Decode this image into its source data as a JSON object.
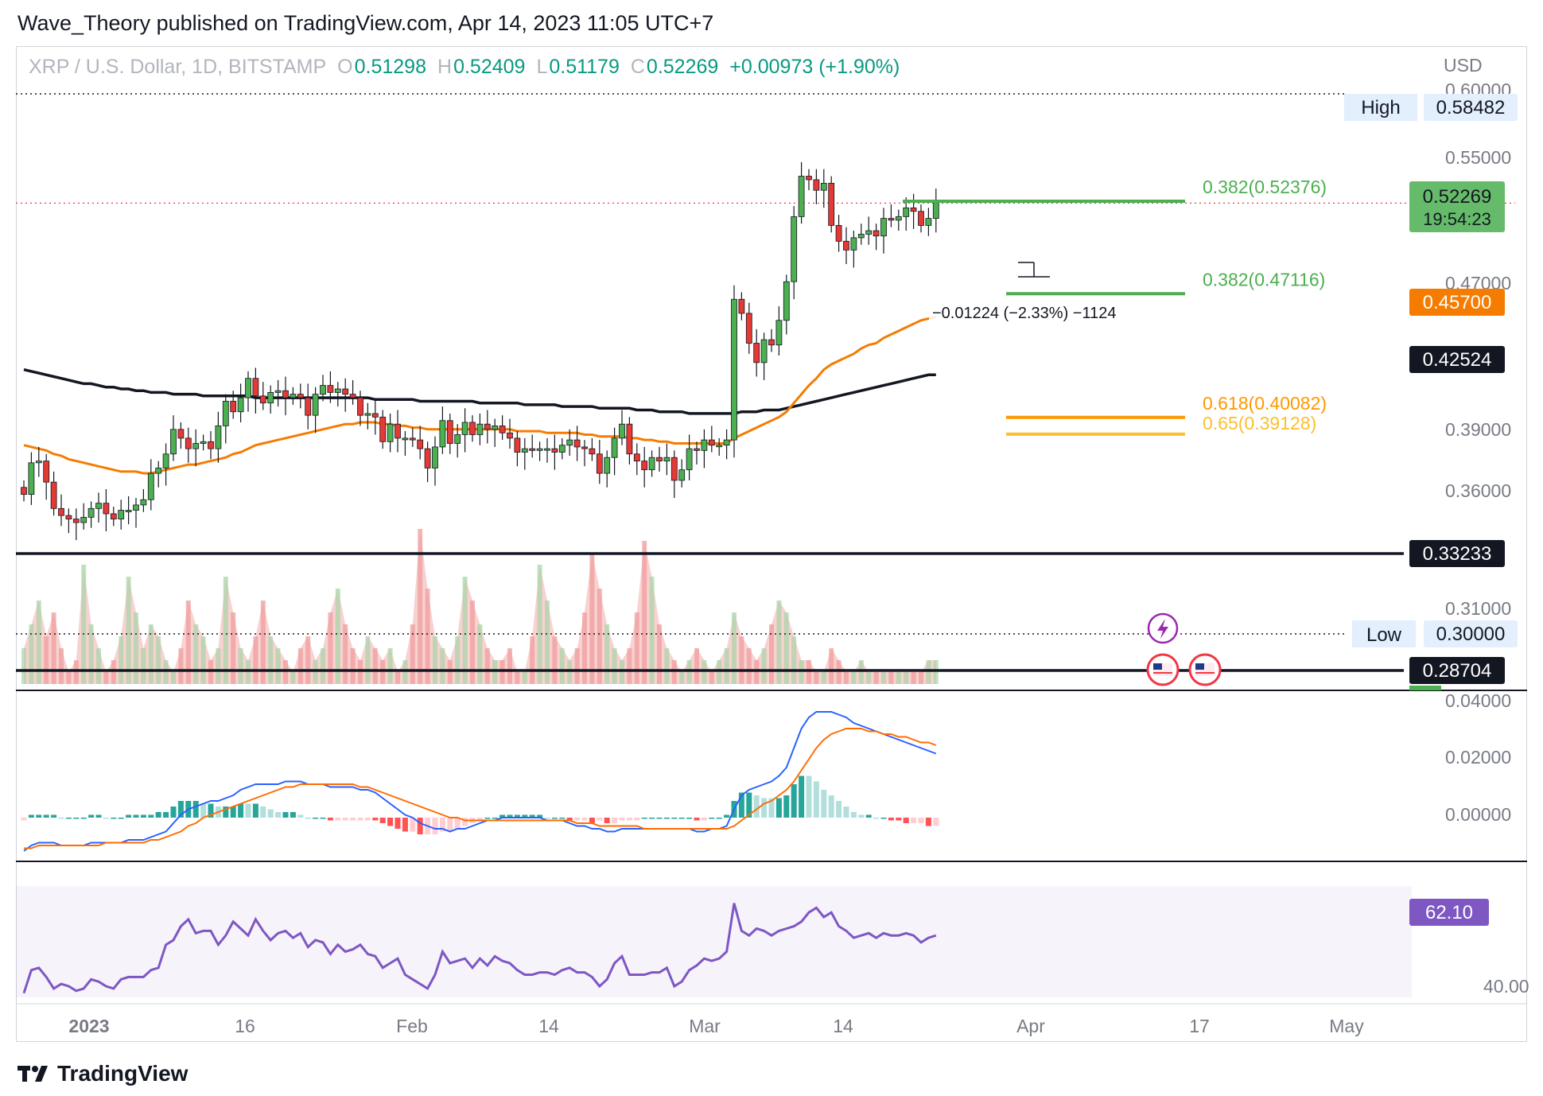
{
  "header": {
    "text": "Wave_Theory published on TradingView.com, Apr 14, 2023 11:05 UTC+7"
  },
  "legend": {
    "symbol": "XRP / U.S. Dollar, 1D, BITSTAMP",
    "o_label": "O",
    "o_value": "0.51298",
    "h_label": "H",
    "h_value": "0.52409",
    "l_label": "L",
    "l_value": "0.51179",
    "c_label": "C",
    "c_value": "0.52269",
    "change": "+0.00973 (+1.90%)"
  },
  "footer": {
    "brand": "TradingView"
  },
  "colors": {
    "up": "#089981",
    "down": "#f23645",
    "ema50": "#f57c00",
    "ema200": "#131722",
    "macd": "#2962ff",
    "signal": "#ff6d00",
    "rsi": "#7e57c2",
    "fib_green": "#4caf50",
    "fib_orange": "#ff9800",
    "fib_yellow": "#ffeb3b"
  },
  "chart_data": [
    {
      "type": "candlestick",
      "title": "XRP / U.S. Dollar, 1D, BITSTAMP",
      "currency": "USD",
      "x_ticks": [
        "2023",
        "16",
        "Feb",
        "14",
        "Mar",
        "14",
        "Apr",
        "17",
        "May"
      ],
      "ylim": [
        0.285,
        0.6
      ],
      "y_ticks": [
        "0.60000",
        "0.55000",
        "0.47000",
        "0.39000",
        "0.36000",
        "0.31000"
      ],
      "price_labels": [
        {
          "name": "High",
          "value": "0.58482"
        },
        {
          "name": "last",
          "value": "0.52269",
          "countdown": "19:54:23"
        },
        {
          "name": "ema50",
          "value": "0.45700"
        },
        {
          "name": "ema200",
          "value": "0.42524"
        },
        {
          "name": "support",
          "value": "0.33233"
        },
        {
          "name": "Low",
          "value": "0.30000"
        },
        {
          "name": "support2",
          "value": "0.28704"
        }
      ],
      "fib_levels": [
        {
          "label": "0.382(0.52376)",
          "value": 0.52376,
          "color": "#4caf50"
        },
        {
          "label": "0.382(0.47116)",
          "value": 0.47116,
          "color": "#4caf50"
        },
        {
          "label": "0.618(0.40082)",
          "value": 0.40082,
          "color": "#ff9800"
        },
        {
          "label": "0.65(0.39128)",
          "value": 0.39128,
          "color": "#fbc02d"
        }
      ],
      "horizontal_lines": [
        0.33233,
        0.28704
      ],
      "measure_annotation": "−0.01224 (−2.33%) −1124",
      "closes": [
        0.357,
        0.375,
        0.376,
        0.364,
        0.349,
        0.345,
        0.343,
        0.341,
        0.344,
        0.349,
        0.352,
        0.346,
        0.343,
        0.348,
        0.348,
        0.351,
        0.354,
        0.369,
        0.372,
        0.38,
        0.394,
        0.389,
        0.383,
        0.386,
        0.387,
        0.383,
        0.396,
        0.41,
        0.404,
        0.412,
        0.423,
        0.413,
        0.409,
        0.415,
        0.416,
        0.412,
        0.414,
        0.412,
        0.402,
        0.414,
        0.419,
        0.415,
        0.417,
        0.414,
        0.412,
        0.402,
        0.403,
        0.401,
        0.387,
        0.397,
        0.389,
        0.389,
        0.388,
        0.383,
        0.372,
        0.384,
        0.399,
        0.386,
        0.391,
        0.398,
        0.391,
        0.397,
        0.394,
        0.396,
        0.392,
        0.389,
        0.381,
        0.383,
        0.382,
        0.383,
        0.383,
        0.381,
        0.385,
        0.388,
        0.384,
        0.383,
        0.38,
        0.369,
        0.378,
        0.389,
        0.397,
        0.38,
        0.376,
        0.371,
        0.378,
        0.376,
        0.378,
        0.365,
        0.371,
        0.383,
        0.382,
        0.388,
        0.385,
        0.385,
        0.388,
        0.468,
        0.46,
        0.443,
        0.432,
        0.445,
        0.442,
        0.456,
        0.478,
        0.515,
        0.538,
        0.536,
        0.53,
        0.534,
        0.51,
        0.501,
        0.496,
        0.503,
        0.505,
        0.507,
        0.504,
        0.514,
        0.513,
        0.515,
        0.52,
        0.518,
        0.51,
        0.514,
        0.523
      ],
      "ema50": [
        0.385,
        0.384,
        0.383,
        0.382,
        0.38,
        0.379,
        0.377,
        0.376,
        0.375,
        0.374,
        0.373,
        0.372,
        0.371,
        0.37,
        0.37,
        0.37,
        0.369,
        0.369,
        0.37,
        0.371,
        0.372,
        0.373,
        0.374,
        0.374,
        0.375,
        0.376,
        0.377,
        0.378,
        0.38,
        0.381,
        0.383,
        0.385,
        0.386,
        0.387,
        0.388,
        0.389,
        0.39,
        0.391,
        0.392,
        0.393,
        0.394,
        0.395,
        0.396,
        0.397,
        0.397,
        0.398,
        0.398,
        0.398,
        0.397,
        0.397,
        0.396,
        0.396,
        0.395,
        0.395,
        0.394,
        0.394,
        0.394,
        0.394,
        0.394,
        0.394,
        0.394,
        0.394,
        0.394,
        0.394,
        0.394,
        0.394,
        0.393,
        0.393,
        0.393,
        0.393,
        0.392,
        0.392,
        0.392,
        0.392,
        0.392,
        0.391,
        0.391,
        0.39,
        0.39,
        0.39,
        0.39,
        0.389,
        0.389,
        0.388,
        0.388,
        0.387,
        0.387,
        0.386,
        0.386,
        0.386,
        0.386,
        0.386,
        0.386,
        0.386,
        0.386,
        0.389,
        0.391,
        0.393,
        0.395,
        0.397,
        0.399,
        0.401,
        0.404,
        0.409,
        0.414,
        0.419,
        0.423,
        0.428,
        0.431,
        0.433,
        0.435,
        0.437,
        0.44,
        0.442,
        0.443,
        0.446,
        0.448,
        0.45,
        0.452,
        0.454,
        0.456,
        0.457,
        0.458
      ],
      "ema200": [
        0.428,
        0.427,
        0.426,
        0.425,
        0.424,
        0.423,
        0.422,
        0.421,
        0.42,
        0.42,
        0.419,
        0.418,
        0.418,
        0.417,
        0.417,
        0.416,
        0.416,
        0.415,
        0.415,
        0.415,
        0.414,
        0.414,
        0.414,
        0.414,
        0.413,
        0.413,
        0.413,
        0.413,
        0.413,
        0.413,
        0.413,
        0.412,
        0.412,
        0.412,
        0.412,
        0.412,
        0.412,
        0.412,
        0.412,
        0.412,
        0.412,
        0.412,
        0.412,
        0.412,
        0.412,
        0.412,
        0.412,
        0.411,
        0.411,
        0.411,
        0.411,
        0.411,
        0.411,
        0.41,
        0.41,
        0.41,
        0.41,
        0.41,
        0.41,
        0.41,
        0.41,
        0.409,
        0.409,
        0.409,
        0.409,
        0.409,
        0.409,
        0.408,
        0.408,
        0.408,
        0.408,
        0.408,
        0.407,
        0.407,
        0.407,
        0.407,
        0.407,
        0.406,
        0.406,
        0.406,
        0.406,
        0.406,
        0.405,
        0.405,
        0.405,
        0.404,
        0.404,
        0.404,
        0.404,
        0.403,
        0.403,
        0.403,
        0.403,
        0.403,
        0.403,
        0.403,
        0.404,
        0.404,
        0.404,
        0.405,
        0.405,
        0.405,
        0.406,
        0.407,
        0.408,
        0.409,
        0.41,
        0.411,
        0.412,
        0.413,
        0.414,
        0.415,
        0.416,
        0.417,
        0.418,
        0.419,
        0.42,
        0.421,
        0.422,
        0.423,
        0.424,
        0.425,
        0.425
      ]
    },
    {
      "type": "area",
      "name": "volume",
      "values": [
        0.3,
        0.5,
        0.7,
        0.4,
        0.6,
        0.3,
        0.1,
        0.2,
        1.0,
        0.5,
        0.3,
        0.1,
        0.2,
        0.4,
        0.9,
        0.6,
        0.3,
        0.5,
        0.4,
        0.2,
        0.1,
        0.3,
        0.7,
        0.5,
        0.4,
        0.2,
        0.3,
        0.9,
        0.6,
        0.3,
        0.2,
        0.4,
        0.7,
        0.4,
        0.3,
        0.2,
        0.1,
        0.3,
        0.4,
        0.2,
        0.3,
        0.6,
        0.8,
        0.5,
        0.3,
        0.2,
        0.4,
        0.3,
        0.2,
        0.3,
        0.1,
        0.2,
        0.5,
        1.3,
        0.8,
        0.4,
        0.3,
        0.2,
        0.4,
        0.9,
        0.7,
        0.5,
        0.3,
        0.2,
        0.2,
        0.3,
        0.1,
        0.1,
        0.4,
        1.0,
        0.7,
        0.4,
        0.3,
        0.2,
        0.3,
        0.6,
        1.1,
        0.8,
        0.5,
        0.3,
        0.2,
        0.3,
        0.6,
        1.2,
        0.9,
        0.5,
        0.3,
        0.2,
        0.1,
        0.2,
        0.3,
        0.2,
        0.1,
        0.2,
        0.3,
        0.6,
        0.4,
        0.3,
        0.2,
        0.3,
        0.5,
        0.7,
        0.6,
        0.4,
        0.2,
        0.2,
        0.1,
        0.1,
        0.3,
        0.2,
        0.1,
        0.1,
        0.2,
        0.1,
        0.1,
        0.1,
        0.1,
        0.1,
        0.1,
        0.1,
        0.1,
        0.2,
        0.2
      ],
      "y_ticks": [
        "0.31000",
        "0.30000",
        "0.28704"
      ]
    },
    {
      "type": "line",
      "name": "MACD",
      "ylim": [
        -0.012,
        0.045
      ],
      "y_ticks": [
        "0.04000",
        "0.02000",
        "0.00000"
      ],
      "series": [
        {
          "values": [
            -0.012,
            -0.01,
            -0.009,
            -0.009,
            -0.009,
            -0.01,
            -0.01,
            -0.01,
            -0.01,
            -0.009,
            -0.009,
            -0.009,
            -0.009,
            -0.009,
            -0.008,
            -0.008,
            -0.008,
            -0.007,
            -0.006,
            -0.005,
            -0.002,
            0.001,
            0.003,
            0.004,
            0.005,
            0.006,
            0.006,
            0.007,
            0.008,
            0.01,
            0.011,
            0.012,
            0.012,
            0.012,
            0.012,
            0.013,
            0.013,
            0.013,
            0.012,
            0.012,
            0.012,
            0.011,
            0.011,
            0.011,
            0.011,
            0.01,
            0.01,
            0.009,
            0.007,
            0.005,
            0.003,
            0.001,
            0.0,
            -0.002,
            -0.003,
            -0.004,
            -0.004,
            -0.005,
            -0.004,
            -0.004,
            -0.003,
            -0.002,
            -0.001,
            -0.001,
            0.0,
            0.0,
            0.0,
            0.0,
            0.0,
            0.0,
            -0.001,
            -0.001,
            -0.001,
            -0.002,
            -0.003,
            -0.003,
            -0.004,
            -0.004,
            -0.005,
            -0.005,
            -0.004,
            -0.004,
            -0.004,
            -0.004,
            -0.004,
            -0.004,
            -0.004,
            -0.004,
            -0.004,
            -0.004,
            -0.005,
            -0.005,
            -0.004,
            -0.004,
            -0.003,
            0.003,
            0.008,
            0.01,
            0.011,
            0.012,
            0.013,
            0.015,
            0.018,
            0.025,
            0.032,
            0.036,
            0.038,
            0.038,
            0.038,
            0.037,
            0.036,
            0.034,
            0.033,
            0.032,
            0.031,
            0.03,
            0.029,
            0.028,
            0.027,
            0.026,
            0.025,
            0.024,
            0.023
          ]
        },
        {
          "values": [
            -0.011,
            -0.011,
            -0.01,
            -0.01,
            -0.01,
            -0.01,
            -0.01,
            -0.01,
            -0.01,
            -0.01,
            -0.01,
            -0.009,
            -0.009,
            -0.009,
            -0.009,
            -0.009,
            -0.009,
            -0.008,
            -0.008,
            -0.007,
            -0.006,
            -0.005,
            -0.003,
            -0.002,
            0.0,
            0.001,
            0.002,
            0.003,
            0.004,
            0.005,
            0.006,
            0.007,
            0.008,
            0.009,
            0.01,
            0.011,
            0.011,
            0.012,
            0.012,
            0.012,
            0.012,
            0.012,
            0.012,
            0.012,
            0.012,
            0.011,
            0.011,
            0.01,
            0.009,
            0.008,
            0.007,
            0.006,
            0.005,
            0.004,
            0.003,
            0.002,
            0.001,
            0.0,
            0.0,
            -0.001,
            -0.001,
            -0.001,
            -0.001,
            -0.001,
            -0.001,
            -0.001,
            -0.001,
            -0.001,
            -0.001,
            -0.001,
            -0.001,
            -0.001,
            -0.001,
            -0.001,
            -0.002,
            -0.002,
            -0.002,
            -0.003,
            -0.003,
            -0.003,
            -0.003,
            -0.003,
            -0.003,
            -0.004,
            -0.004,
            -0.004,
            -0.004,
            -0.004,
            -0.004,
            -0.004,
            -0.004,
            -0.004,
            -0.004,
            -0.004,
            -0.004,
            -0.003,
            -0.001,
            0.001,
            0.003,
            0.005,
            0.006,
            0.008,
            0.01,
            0.013,
            0.017,
            0.021,
            0.025,
            0.028,
            0.03,
            0.031,
            0.032,
            0.032,
            0.032,
            0.031,
            0.031,
            0.03,
            0.03,
            0.029,
            0.029,
            0.028,
            0.027,
            0.027,
            0.026
          ]
        }
      ]
    },
    {
      "type": "line",
      "name": "RSI",
      "ylim": [
        25,
        85
      ],
      "y_ticks": [
        "40.00"
      ],
      "last_label": "62.10",
      "values": [
        37,
        47,
        48,
        44,
        39,
        41,
        40,
        38,
        39,
        43,
        42,
        40,
        39,
        43,
        44,
        44,
        44,
        47,
        48,
        58,
        60,
        66,
        69,
        63,
        64,
        64,
        58,
        62,
        68,
        65,
        62,
        69,
        64,
        60,
        63,
        64,
        61,
        63,
        57,
        60,
        59,
        54,
        58,
        55,
        56,
        58,
        54,
        53,
        48,
        50,
        52,
        45,
        43,
        41,
        39,
        45,
        55,
        50,
        51,
        52,
        48,
        52,
        49,
        53,
        51,
        50,
        47,
        45,
        45,
        46,
        46,
        45,
        47,
        48,
        46,
        46,
        44,
        40,
        43,
        50,
        53,
        45,
        45,
        45,
        46,
        46,
        48,
        40,
        42,
        47,
        49,
        52,
        51,
        52,
        55,
        76,
        64,
        62,
        65,
        64,
        62,
        64,
        65,
        66,
        68,
        72,
        74,
        70,
        72,
        66,
        64,
        61,
        62,
        63,
        61,
        63,
        62,
        62,
        63,
        62,
        59,
        61,
        62
      ]
    }
  ]
}
